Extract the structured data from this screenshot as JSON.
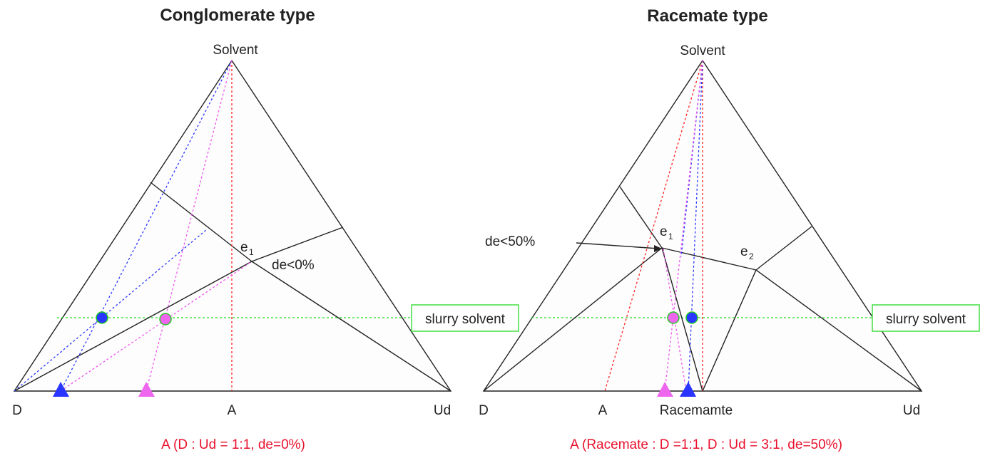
{
  "colors": {
    "red": "#ff2020",
    "blue": "#2a36ff",
    "pink": "#ee55ee",
    "green": "#22dd22",
    "caption": "#e8112d"
  },
  "left": {
    "title": "Conglomerate type",
    "apex": "Solvent",
    "corner_left": "D",
    "corner_mid": "A",
    "corner_right": "Ud",
    "eutectic": "e",
    "eutectic_sub": "1",
    "de_label": "de<0%",
    "slurry": "slurry solvent",
    "caption": "A (D : Ud = 1:1, de=0%)"
  },
  "right": {
    "title": "Racemate type",
    "apex": "Solvent",
    "corner_left": "D",
    "corner_a": "A",
    "corner_racemate": "Racemamte",
    "corner_right": "Ud",
    "de_label": "de<50%",
    "e1": "e",
    "e1_sub": "1",
    "e2": "e",
    "e2_sub": "2",
    "slurry": "slurry solvent",
    "caption": "A (Racemate : D =1:1, D : Ud = 3:1, de=50%)"
  }
}
